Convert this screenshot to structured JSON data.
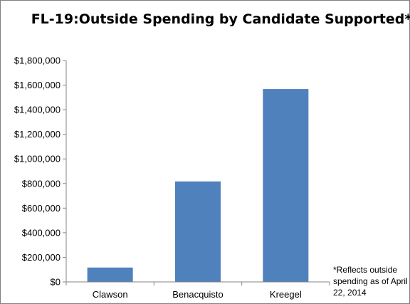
{
  "chart_data": {
    "type": "bar",
    "title": "FL-19:Outside Spending by Candidate Supported*",
    "categories": [
      "Clawson",
      "Benacquisto",
      "Kreegel"
    ],
    "values": [
      117000,
      817000,
      1568000
    ],
    "ylim": [
      0,
      1800000
    ],
    "y_ticks": [
      "$0",
      "$200,000",
      "$400,000",
      "$600,000",
      "$800,000",
      "$1,000,000",
      "$1,200,000",
      "$1,400,000",
      "$1,600,000",
      "$1,800,000"
    ],
    "xlabel": "",
    "ylabel": "",
    "grid": false,
    "legend": "none",
    "bar_color": "#4f81bd",
    "footnote": "*Reflects outside spending as of April 22, 2014"
  }
}
